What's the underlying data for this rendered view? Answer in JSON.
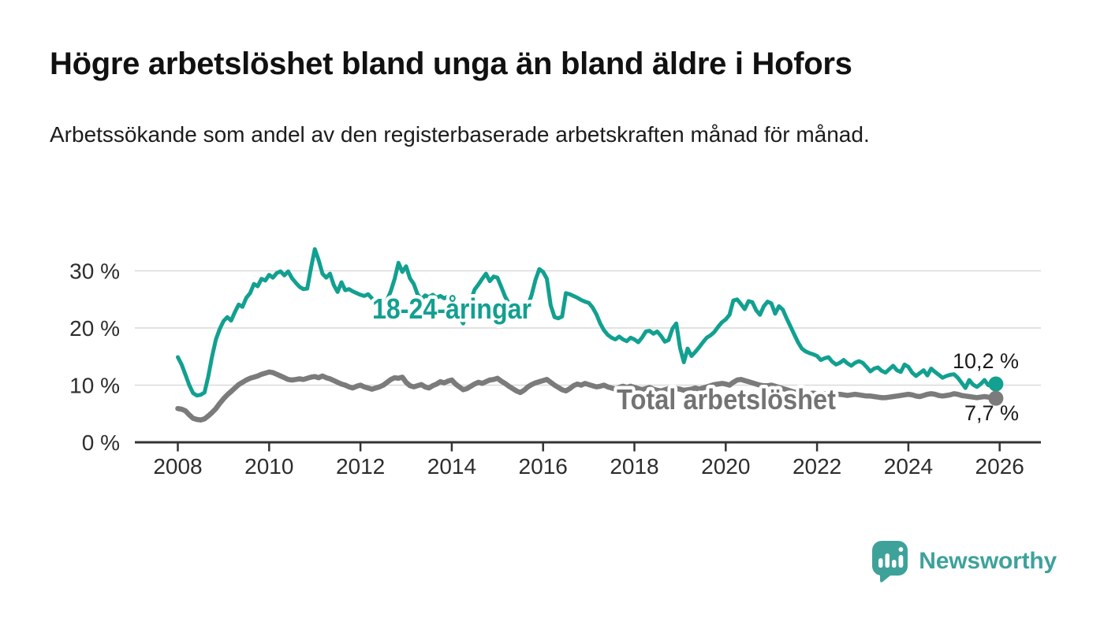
{
  "header": {
    "title": "Högre arbetslöshet bland unga än bland äldre i Hofors",
    "subtitle": "Arbetssökande som andel av den registerbaserade arbetskraften månad för månad."
  },
  "footer": {
    "logo_text": "Newsworthy"
  },
  "colors": {
    "youth_line": "#12a090",
    "total_line": "#7b7b7b",
    "total_label": "#737373",
    "grid": "#d9d9d9",
    "axis": "#333333",
    "tick_text": "#2d2d2d",
    "value_label": "#1a1a1a",
    "logo": "#3ea29b",
    "halo": "#ffffff"
  },
  "chart_data": {
    "type": "line",
    "title": "Högre arbetslöshet bland unga än bland äldre i Hofors",
    "subtitle": "Arbetssökande som andel av den registerbaserade arbetskraften månad för månad.",
    "frequency": "monthly",
    "x_start_year": 2008,
    "x_end_year": 2025.917,
    "ylim": [
      0,
      35
    ],
    "grid": "horizontal",
    "legend_position": "inline-labels",
    "ytick_values": [
      0,
      10,
      20,
      30
    ],
    "ytick_labels": [
      "0 %",
      "10 %",
      "20 %",
      "30 %"
    ],
    "xtick_values": [
      2008,
      2010,
      2012,
      2014,
      2016,
      2018,
      2020,
      2022,
      2024,
      2026
    ],
    "xtick_labels": [
      "2008",
      "2010",
      "2012",
      "2014",
      "2016",
      "2018",
      "2020",
      "2022",
      "2024",
      "2026"
    ],
    "series": [
      {
        "name": "18-24-åringar",
        "line_color": "#12a090",
        "label_color": "#12a090",
        "end_label": "10,2 %",
        "end_value": 10.2,
        "values": [
          14.9,
          13.6,
          11.8,
          10.0,
          8.6,
          8.2,
          8.3,
          8.7,
          11.5,
          15.0,
          18.0,
          19.8,
          21.2,
          21.9,
          21.3,
          22.8,
          24.1,
          23.7,
          25.3,
          26.1,
          27.7,
          27.3,
          28.6,
          28.3,
          29.3,
          28.8,
          29.6,
          29.9,
          29.2,
          29.9,
          28.7,
          27.9,
          27.2,
          26.8,
          26.9,
          30.5,
          33.8,
          31.9,
          29.5,
          28.8,
          29.5,
          27.5,
          26.3,
          28.0,
          26.6,
          26.8,
          26.4,
          26.1,
          25.8,
          25.6,
          25.9,
          25.2,
          24.4,
          24.7,
          24.3,
          24.9,
          26.5,
          28.6,
          31.4,
          29.8,
          30.8,
          28.7,
          27.7,
          25.9,
          25.0,
          25.7,
          25.4,
          25.8,
          25.3,
          25.6,
          25.2,
          25.5,
          25.0,
          23.2,
          21.9,
          20.8,
          23.0,
          24.8,
          26.7,
          27.6,
          28.6,
          29.5,
          28.2,
          29.0,
          28.8,
          27.2,
          25.5,
          24.3,
          23.2,
          22.4,
          21.8,
          22.7,
          23.9,
          25.8,
          28.4,
          30.3,
          29.8,
          28.6,
          24.0,
          21.9,
          21.7,
          22.0,
          26.1,
          25.9,
          25.6,
          25.3,
          24.9,
          24.6,
          24.4,
          23.6,
          22.4,
          20.8,
          19.6,
          18.8,
          18.3,
          18.0,
          18.5,
          18.0,
          17.7,
          18.3,
          18.0,
          17.5,
          18.3,
          19.4,
          19.5,
          19.0,
          19.4,
          18.6,
          17.6,
          17.9,
          19.9,
          20.8,
          16.5,
          14.0,
          16.4,
          15.1,
          15.8,
          16.6,
          17.5,
          18.3,
          18.7,
          19.3,
          20.2,
          21.0,
          21.5,
          22.3,
          24.8,
          25.0,
          24.2,
          23.3,
          24.7,
          24.5,
          23.1,
          22.3,
          23.8,
          24.6,
          24.3,
          22.5,
          23.8,
          23.2,
          21.7,
          20.3,
          18.9,
          17.5,
          16.4,
          15.9,
          15.6,
          15.4,
          15.1,
          14.4,
          14.7,
          14.9,
          14.1,
          13.6,
          13.9,
          14.4,
          13.8,
          13.4,
          13.9,
          14.2,
          13.9,
          13.2,
          12.4,
          12.9,
          13.1,
          12.5,
          12.2,
          12.8,
          13.4,
          12.6,
          12.3,
          13.6,
          13.2,
          12.2,
          11.6,
          12.1,
          12.6,
          11.7,
          12.9,
          12.3,
          11.8,
          11.3,
          11.6,
          11.8,
          11.9,
          11.3,
          10.4,
          9.5,
          10.9,
          10.1,
          9.7,
          10.2,
          10.9,
          10.0,
          9.8,
          10.2
        ]
      },
      {
        "name": "Total arbetslöshet",
        "line_color": "#7b7b7b",
        "label_color": "#737373",
        "end_label": "7,7 %",
        "end_value": 7.7,
        "values": [
          5.9,
          5.8,
          5.5,
          4.8,
          4.2,
          4.0,
          3.9,
          4.1,
          4.6,
          5.2,
          5.9,
          6.8,
          7.6,
          8.3,
          8.9,
          9.5,
          10.1,
          10.5,
          10.9,
          11.2,
          11.4,
          11.6,
          11.9,
          12.1,
          12.3,
          12.2,
          11.9,
          11.6,
          11.3,
          11.0,
          10.9,
          11.0,
          11.1,
          11.0,
          11.2,
          11.4,
          11.5,
          11.3,
          11.6,
          11.3,
          11.1,
          10.8,
          10.5,
          10.2,
          10.0,
          9.7,
          9.5,
          9.8,
          10.0,
          9.7,
          9.5,
          9.3,
          9.5,
          9.7,
          10.0,
          10.5,
          11.0,
          11.3,
          11.2,
          11.4,
          10.5,
          9.9,
          9.7,
          9.9,
          10.1,
          9.7,
          9.5,
          9.9,
          10.2,
          10.6,
          10.4,
          10.7,
          10.9,
          10.2,
          9.7,
          9.2,
          9.4,
          9.8,
          10.2,
          10.5,
          10.3,
          10.6,
          10.9,
          11.0,
          11.2,
          10.7,
          10.3,
          9.8,
          9.4,
          9.0,
          8.7,
          9.1,
          9.7,
          10.1,
          10.4,
          10.6,
          10.8,
          11.0,
          10.5,
          10.0,
          9.6,
          9.2,
          9.0,
          9.4,
          9.9,
          10.2,
          10.0,
          10.3,
          10.1,
          9.9,
          9.7,
          9.8,
          10.0,
          9.7,
          9.5,
          9.3,
          9.6,
          9.8,
          9.6,
          9.8,
          9.6,
          9.4,
          9.2,
          9.4,
          9.6,
          9.3,
          9.1,
          9.0,
          9.2,
          9.4,
          9.2,
          9.4,
          9.3,
          9.1,
          9.2,
          9.3,
          9.5,
          9.3,
          9.5,
          9.7,
          9.9,
          10.1,
          10.2,
          10.3,
          10.2,
          10.0,
          10.5,
          10.9,
          11.0,
          10.8,
          10.6,
          10.4,
          10.2,
          10.0,
          9.9,
          9.9,
          10.0,
          9.8,
          9.6,
          9.4,
          9.2,
          9.0,
          8.8,
          8.7,
          8.5,
          8.4,
          8.5,
          8.6,
          8.5,
          8.6,
          8.5,
          8.4,
          8.3,
          8.3,
          8.4,
          8.3,
          8.2,
          8.3,
          8.4,
          8.3,
          8.2,
          8.1,
          8.1,
          8.0,
          7.9,
          7.8,
          7.8,
          7.9,
          8.0,
          8.1,
          8.2,
          8.3,
          8.4,
          8.3,
          8.1,
          8.0,
          8.2,
          8.4,
          8.5,
          8.4,
          8.2,
          8.1,
          8.2,
          8.3,
          8.5,
          8.4,
          8.2,
          8.1,
          8.0,
          7.9,
          7.8,
          7.9,
          8.0,
          7.9,
          7.8,
          7.7
        ]
      }
    ]
  }
}
